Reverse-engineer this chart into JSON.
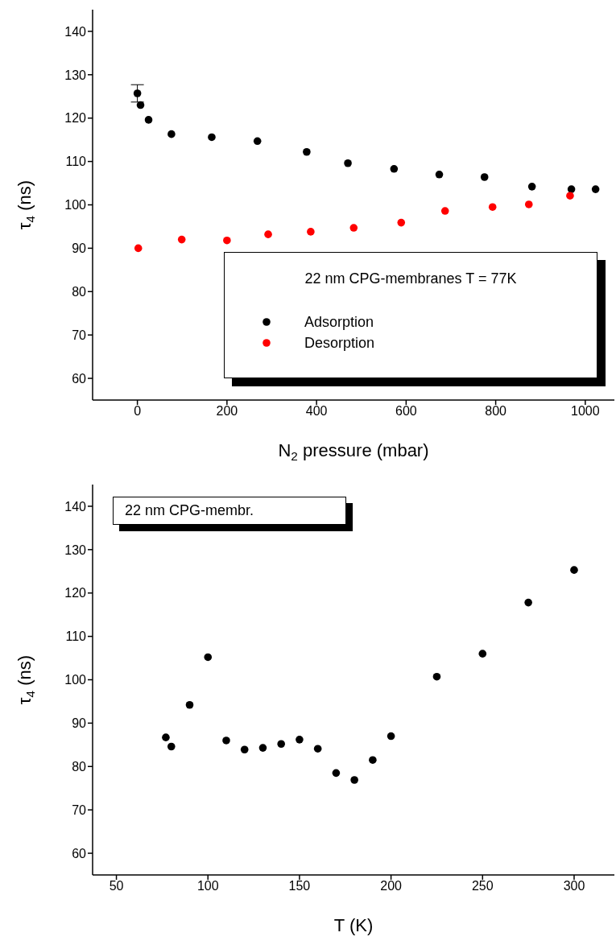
{
  "chart_data": [
    {
      "type": "scatter",
      "xlabel": "N$_{2}$ pressure (mbar)",
      "ylabel": "τ$_{4}$ (ns)",
      "legend_title": "22 nm CPG-membranes T = 77K",
      "legend": "bottom",
      "marker": "circle",
      "grid": false,
      "xlim": [
        -100,
        1065
      ],
      "xticks": [
        0,
        200,
        400,
        600,
        800,
        1000
      ],
      "ylim": [
        55,
        145
      ],
      "yticks": [
        60,
        70,
        80,
        90,
        100,
        110,
        120,
        130,
        140
      ],
      "series": [
        {
          "name": "Adsorption",
          "color": "#000000",
          "x": [
            0,
            7,
            25,
            76,
            166,
            268,
            378,
            470,
            573,
            674,
            775,
            881,
            969,
            1023
          ],
          "values": [
            125.7,
            123,
            119.6,
            116.3,
            115.6,
            114.7,
            112.2,
            109.6,
            108.3,
            107,
            106.4,
            104.2,
            103.6,
            103.6
          ],
          "errors": [
            2,
            null,
            null,
            null,
            null,
            null,
            null,
            null,
            null,
            null,
            null,
            null,
            null,
            null
          ]
        },
        {
          "name": "Desorption",
          "color": "#ff0000",
          "x": [
            2,
            99,
            200,
            292,
            387,
            483,
            589,
            687,
            793,
            874,
            966
          ],
          "values": [
            90,
            92,
            91.8,
            93.2,
            93.8,
            94.7,
            95.9,
            98.6,
            99.5,
            100.1,
            102.1
          ]
        }
      ]
    },
    {
      "type": "scatter",
      "xlabel": "T (K)",
      "ylabel": "τ$_{4}$ (ns)",
      "annotations": [
        "22 nm CPG-membr."
      ],
      "marker": "circle",
      "grid": false,
      "xlim": [
        37,
        322
      ],
      "xticks": [
        50,
        100,
        150,
        200,
        250,
        300
      ],
      "ylim": [
        55,
        145
      ],
      "yticks": [
        60,
        70,
        80,
        90,
        100,
        110,
        120,
        130,
        140
      ],
      "series": [
        {
          "color": "#000000",
          "x": [
            77,
            80,
            90,
            100,
            110,
            120,
            130,
            140,
            150,
            160,
            170,
            180,
            190,
            200,
            225,
            250,
            275,
            300
          ],
          "values": [
            86.7,
            84.6,
            94.2,
            105.2,
            86,
            83.9,
            84.3,
            85.2,
            86.2,
            84.1,
            78.5,
            76.9,
            81.5,
            87,
            100.7,
            106,
            117.8,
            125.3
          ]
        }
      ]
    }
  ]
}
